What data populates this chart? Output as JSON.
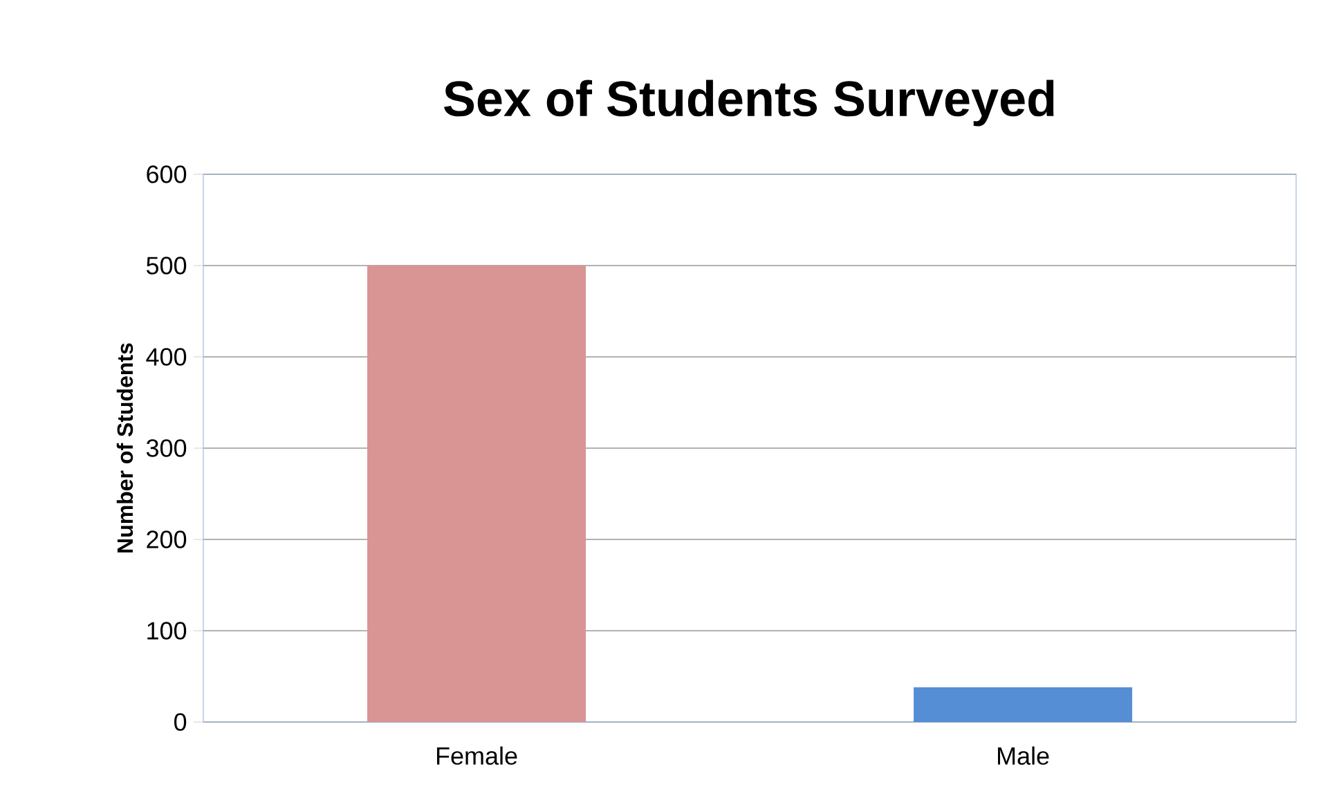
{
  "chart_data": {
    "type": "bar",
    "title": "Sex of Students Surveyed",
    "ylabel": "Number of Students",
    "categories": [
      "Female",
      "Male"
    ],
    "values": [
      500,
      38
    ],
    "colors": [
      "#d99594",
      "#558ed5"
    ],
    "ylim": [
      0,
      600
    ],
    "yticks": [
      0,
      100,
      200,
      300,
      400,
      500,
      600
    ],
    "grid": "y"
  }
}
